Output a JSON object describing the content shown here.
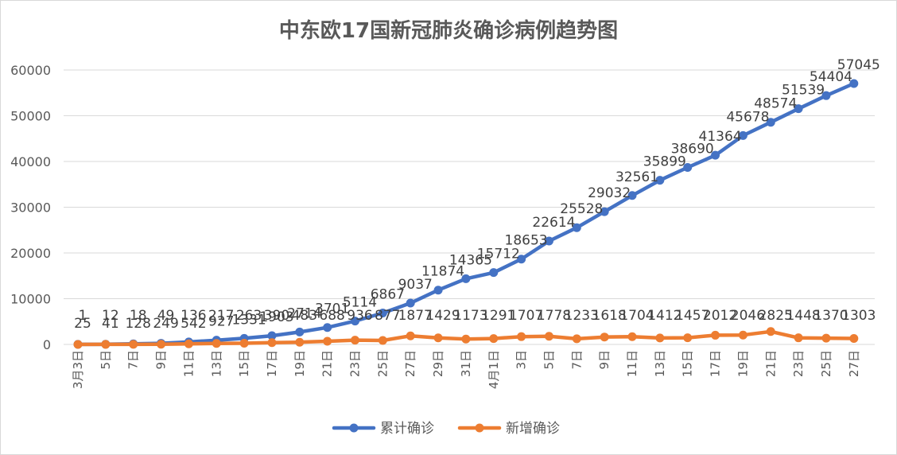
{
  "chart_data": {
    "type": "line",
    "title": "中东欧17国新冠肺炎确诊病例趋势图",
    "xlabel": "",
    "ylabel": "",
    "ylim": [
      0,
      60000
    ],
    "yticks": [
      0,
      10000,
      20000,
      30000,
      40000,
      50000,
      60000
    ],
    "grid": true,
    "legend_position": "bottom",
    "x_tick_labels": [
      "3月3日",
      "5日",
      "7日",
      "9日",
      "11日",
      "13日",
      "15日",
      "17日",
      "19日",
      "21日",
      "23日",
      "25日",
      "27日",
      "29日",
      "31日",
      "4月1日",
      "3日",
      "5日",
      "7日",
      "9日",
      "11日",
      "13日",
      "15日",
      "17日",
      "19日",
      "21日",
      "23日",
      "25日",
      "27日"
    ],
    "series": [
      {
        "name": "累计确诊",
        "color": "#4472C4",
        "values": [
          25,
          41,
          128,
          249,
          542,
          927,
          1331,
          1903,
          2714,
          3701,
          5114,
          6867,
          9037,
          11874,
          14365,
          15712,
          18653,
          22614,
          25528,
          29032,
          32561,
          35899,
          38690,
          41364,
          45678,
          48574,
          51539,
          54404,
          57045
        ],
        "labels": [
          "25",
          "41",
          "128",
          "249",
          "542",
          "927",
          "1331",
          "1903",
          "2714",
          "3701",
          "5114",
          "6867",
          "9037",
          "11874",
          "14365",
          "15712",
          "18653",
          "22614",
          "25528",
          "29032",
          "32561",
          "35899",
          "38690",
          "41364",
          "45678",
          "48574",
          "51539",
          "54404",
          "57045"
        ]
      },
      {
        "name": "新增确诊",
        "color": "#ED7D31",
        "values": [
          1,
          12,
          18,
          49,
          136,
          217,
          263,
          390,
          483,
          688,
          936,
          877,
          1877,
          1429,
          1173,
          1291,
          1707,
          1778,
          1233,
          1618,
          1704,
          1412,
          1457,
          2012,
          2046,
          2825,
          1448,
          1370,
          1303
        ],
        "labels": [
          "1",
          "12",
          "18",
          "49",
          "136",
          "217",
          "263",
          "390",
          "483",
          "688",
          "936",
          "877",
          "1877",
          "1429",
          "1173",
          "1291",
          "1707",
          "1778",
          "1233",
          "1618",
          "1704",
          "1412",
          "1457",
          "2012",
          "2046",
          "2825",
          "1448",
          "1370",
          "1303"
        ]
      }
    ]
  }
}
